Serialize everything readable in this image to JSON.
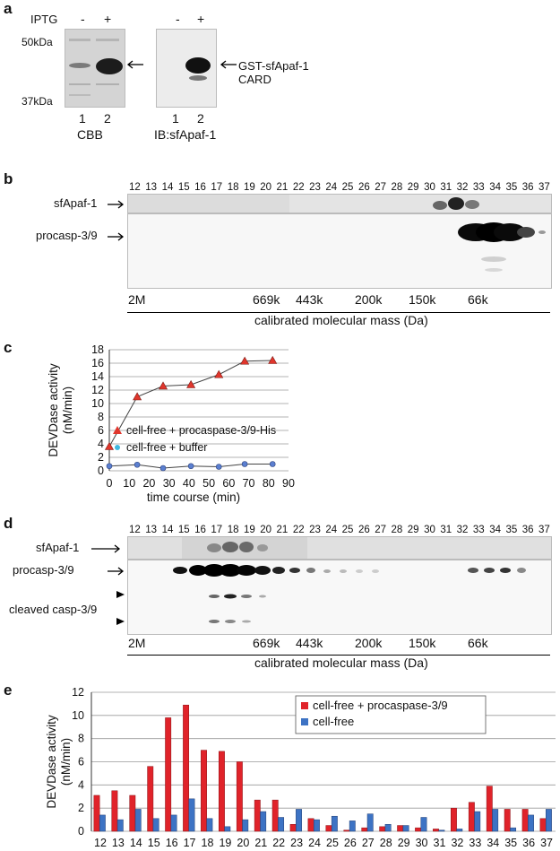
{
  "panel_a": {
    "letter": "a",
    "iptg_label": "IPTG",
    "minus": "-",
    "plus": "+",
    "mw_top": "50kDa",
    "mw_bottom": "37kDa",
    "lanes": [
      "1",
      "2"
    ],
    "left_caption": "CBB",
    "right_caption": "IB:sfApaf-1",
    "band_label_1": "GST-sfApaf-1",
    "band_label_2": "CARD"
  },
  "panel_b": {
    "letter": "b",
    "fractions": [
      "12",
      "13",
      "14",
      "15",
      "16",
      "17",
      "18",
      "19",
      "20",
      "21",
      "22",
      "23",
      "24",
      "25",
      "26",
      "27",
      "28",
      "29",
      "30",
      "31",
      "32",
      "33",
      "34",
      "35",
      "36",
      "37"
    ],
    "row1_label": "sfApaf-1",
    "row2_label": "procasp-3/9",
    "markers": [
      "2M",
      "669k",
      "443k",
      "200k",
      "150k",
      "66k"
    ],
    "mass_label": "calibrated molecular mass (Da)"
  },
  "panel_c": {
    "letter": "c",
    "chart_data": {
      "type": "line",
      "xlabel": "time course (min)",
      "ylabel_1": "DEVDase activity",
      "ylabel_2": "(nM/min)",
      "xlim": [
        0,
        90
      ],
      "ylim": [
        0,
        18
      ],
      "xticks": [
        "0",
        "10",
        "20",
        "30",
        "40",
        "50",
        "60",
        "70",
        "80",
        "90"
      ],
      "yticks": [
        "0",
        "2",
        "4",
        "6",
        "8",
        "10",
        "12",
        "14",
        "16",
        "18"
      ],
      "grid": true,
      "legend_position": "center-right",
      "series": [
        {
          "name": "cell-free + procaspase-3/9-His",
          "color": "#e0362c",
          "marker": "triangle",
          "x": [
            0,
            14,
            27,
            41,
            55,
            68,
            82
          ],
          "y": [
            3.6,
            11.0,
            12.6,
            12.8,
            14.3,
            16.3,
            16.4
          ]
        },
        {
          "name": "cell-free + buffer",
          "color": "#3fb8e0",
          "marker": "circle",
          "x": [
            0,
            14,
            27,
            41,
            55,
            68,
            82
          ],
          "y": [
            0.7,
            0.9,
            0.4,
            0.7,
            0.6,
            1.0,
            1.0
          ]
        }
      ]
    }
  },
  "panel_d": {
    "letter": "d",
    "fractions": [
      "12",
      "13",
      "14",
      "15",
      "16",
      "17",
      "18",
      "19",
      "20",
      "21",
      "22",
      "23",
      "24",
      "25",
      "26",
      "27",
      "28",
      "29",
      "30",
      "31",
      "32",
      "33",
      "34",
      "35",
      "36",
      "37"
    ],
    "row1_label": "sfApaf-1",
    "row2_label": "procasp-3/9",
    "row3_label": "cleaved casp-3/9",
    "markers": [
      "2M",
      "669k",
      "443k",
      "200k",
      "150k",
      "66k"
    ],
    "mass_label": "calibrated molecular mass (Da)"
  },
  "panel_e": {
    "letter": "e",
    "chart_data": {
      "type": "bar",
      "ylabel_1": "DEVDase activity",
      "ylabel_2": "(nM/min)",
      "ylim": [
        0,
        12
      ],
      "yticks": [
        "0",
        "2",
        "4",
        "6",
        "8",
        "10",
        "12"
      ],
      "grid": true,
      "legend_position": "top-right",
      "categories": [
        "12",
        "13",
        "14",
        "15",
        "16",
        "17",
        "18",
        "19",
        "20",
        "21",
        "22",
        "23",
        "24",
        "25",
        "26",
        "27",
        "28",
        "29",
        "30",
        "31",
        "32",
        "33",
        "34",
        "35",
        "36",
        "37"
      ],
      "series": [
        {
          "name": "cell-free + procaspase-3/9",
          "color": "#e0232a",
          "values": [
            3.1,
            3.5,
            3.1,
            5.6,
            9.8,
            10.9,
            7.0,
            6.9,
            6.0,
            2.7,
            2.7,
            0.6,
            1.1,
            0.5,
            0.1,
            0.3,
            0.4,
            0.5,
            0.3,
            0.2,
            2.0,
            2.5,
            3.9,
            1.9,
            1.9,
            1.1
          ]
        },
        {
          "name": "cell-free",
          "color": "#3d73c4",
          "values": [
            1.4,
            1.0,
            1.9,
            1.1,
            1.4,
            2.8,
            1.1,
            0.4,
            1.0,
            1.7,
            1.2,
            1.9,
            1.0,
            1.3,
            0.9,
            1.5,
            0.6,
            0.5,
            1.2,
            0.1,
            0.2,
            1.7,
            1.9,
            0.3,
            1.4,
            1.9
          ]
        }
      ]
    }
  }
}
